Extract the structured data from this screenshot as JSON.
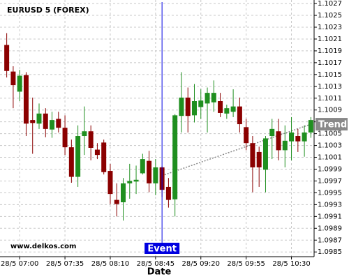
{
  "chart_data": {
    "type": "candlestick",
    "title": "EURUSD 5 (FOREX)",
    "x_label": "Date",
    "watermark": "www.delkos.com",
    "categories": [
      null,
      null,
      "28/5 07:00",
      null,
      null,
      null,
      null,
      null,
      null,
      "28/5 07:35",
      null,
      null,
      null,
      null,
      null,
      null,
      "28/5 08:10",
      null,
      null,
      null,
      null,
      null,
      null,
      "28/5 08:45",
      null,
      null,
      null,
      null,
      null,
      null,
      "28/5 09:20",
      null,
      null,
      null,
      null,
      null,
      null,
      "28/5 09:55",
      null,
      null,
      null,
      null,
      null,
      null,
      "28/5 10:30",
      null,
      null,
      null
    ],
    "open": [
      1.102,
      1.10155,
      1.10121,
      1.10149,
      1.10073,
      1.10067,
      1.10084,
      1.10057,
      1.10075,
      1.1006,
      1.10027,
      1.09977,
      1.10046,
      1.10054,
      1.10023,
      1.10035,
      1.09987,
      1.09938,
      1.09934,
      1.09966,
      1.09969,
      1.09983,
      1.10004,
      1.09966,
      1.09993,
      1.0996,
      1.09939,
      1.1008,
      1.10111,
      1.10081,
      1.10095,
      1.10101,
      1.10103,
      1.10105,
      1.10084,
      1.10087,
      1.10096,
      1.10061,
      1.10034,
      1.10019,
      1.09989,
      1.10046,
      1.10054,
      1.10022,
      1.10037,
      1.10046,
      1.10037,
      1.10052
    ],
    "high": [
      1.1022,
      1.10164,
      1.10158,
      1.10154,
      1.10111,
      1.10101,
      1.10093,
      1.10087,
      1.10087,
      1.10081,
      1.1004,
      1.10064,
      1.10096,
      1.10064,
      1.10034,
      1.1004,
      1.09999,
      1.09966,
      1.09975,
      1.09999,
      1.09996,
      1.10016,
      1.10021,
      1.10007,
      1.09995,
      1.09975,
      1.10083,
      1.10154,
      1.10128,
      1.10134,
      1.10125,
      1.10128,
      1.1014,
      1.10119,
      1.10099,
      1.10125,
      1.10111,
      1.10075,
      1.10046,
      1.10028,
      1.10046,
      1.10075,
      1.10075,
      1.10064,
      1.10078,
      1.10058,
      1.10064,
      1.10078
    ],
    "low": [
      1.10145,
      1.10093,
      1.10105,
      1.10046,
      1.10016,
      1.10058,
      1.10044,
      1.10043,
      1.10052,
      1.10014,
      1.09967,
      1.0996,
      1.10014,
      1.10005,
      1.10007,
      1.09981,
      1.09931,
      1.0991,
      1.09903,
      1.0994,
      1.09948,
      1.09981,
      1.09951,
      1.09946,
      1.09943,
      1.09925,
      1.0991,
      1.10052,
      1.10052,
      1.10069,
      1.10075,
      1.10052,
      1.10087,
      1.10078,
      1.10075,
      1.10078,
      1.10052,
      1.10022,
      1.09951,
      1.0996,
      1.09951,
      1.10007,
      1.10005,
      1.09993,
      1.10005,
      1.10019,
      1.10011,
      1.10043
    ],
    "close": [
      1.10156,
      1.10132,
      1.10148,
      1.10067,
      1.10068,
      1.10084,
      1.10058,
      1.10073,
      1.1006,
      1.10027,
      1.09977,
      1.10046,
      1.10054,
      1.10026,
      1.10014,
      1.09985,
      1.09948,
      1.09931,
      1.09966,
      1.0997,
      1.09972,
      1.10007,
      1.09966,
      1.09993,
      1.09955,
      1.09938,
      1.10081,
      1.10111,
      1.1008,
      1.10105,
      1.10106,
      1.10119,
      1.10119,
      1.10085,
      1.10093,
      1.10096,
      1.10066,
      1.10034,
      1.09993,
      1.09993,
      1.10042,
      1.10058,
      1.10022,
      1.10038,
      1.10052,
      1.10037,
      1.10052,
      1.10073
    ],
    "up_color": "#1f8f1f",
    "down_color": "#8b0000",
    "ylim": [
      1.09842,
      1.10276
    ],
    "yticks": [
      1.1027,
      1.1025,
      1.1023,
      1.1021,
      1.1019,
      1.1017,
      1.1015,
      1.1013,
      1.1011,
      1.1009,
      1.1007,
      1.1005,
      1.1003,
      1.1001,
      1.0999,
      1.0997,
      1.0995,
      1.0993,
      1.0991,
      1.0989,
      1.0987,
      1.0985
    ],
    "grid": true,
    "event": {
      "label": "Event",
      "index": 24,
      "color": "#0000e0"
    },
    "trend": {
      "label": "Trend",
      "start_index": 24,
      "start_value": 1.09979,
      "end_index": 47,
      "end_value": 1.10066,
      "color": "#888888"
    }
  }
}
